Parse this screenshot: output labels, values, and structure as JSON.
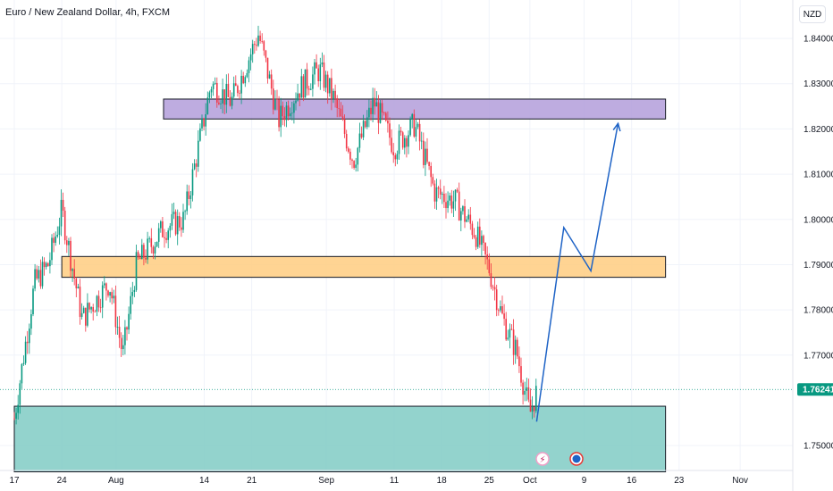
{
  "header": {
    "symbol_title": "Euro / New Zealand Dollar, 4h, FXCM",
    "currency_button": "NZD"
  },
  "colors": {
    "up": "#089981",
    "down": "#f23645",
    "zone_resistance": "#b39ddb",
    "zone_middle": "#ffcc80",
    "zone_support": "#80cbc4",
    "projection": "#1e63c6",
    "last_price_bg": "#089981"
  },
  "chart_data": {
    "type": "candlestick",
    "title": "Euro / New Zealand Dollar, 4h, FXCM",
    "ylim": [
      1.7445,
      1.8485
    ],
    "y_ticks": [
      "1.84000",
      "1.83000",
      "1.82000",
      "1.81000",
      "1.80000",
      "1.79000",
      "1.78000",
      "1.77000",
      "1.75000"
    ],
    "y_tick_values": [
      1.84,
      1.83,
      1.82,
      1.81,
      1.8,
      1.79,
      1.78,
      1.77,
      1.75
    ],
    "x_ticks": [
      "17",
      "24",
      "Aug",
      "14",
      "21",
      "Sep",
      "11",
      "18",
      "25",
      "Oct",
      "9",
      "16",
      "23",
      "Nov"
    ],
    "last_price": "1.76241",
    "last_price_value": 1.76241,
    "zones": [
      {
        "name": "resistance",
        "from": 1.8222,
        "to": 1.8266,
        "start": "Aug 8",
        "end": "Oct 21"
      },
      {
        "name": "middle",
        "from": 1.7872,
        "to": 1.7918,
        "start": "Jul 24",
        "end": "Oct 21"
      },
      {
        "name": "support",
        "from": 1.7442,
        "to": 1.7587,
        "start": "Jul 17",
        "end": "Oct 21"
      }
    ],
    "projection_path": [
      {
        "date": "Oct 2",
        "price": 1.7553
      },
      {
        "date": "Oct 6",
        "price": 1.7982
      },
      {
        "date": "Oct 10",
        "price": 1.7886
      },
      {
        "date": "Oct 14",
        "price": 1.8212
      }
    ],
    "price_path_approx": [
      {
        "date": "Jul 17",
        "price": 1.756
      },
      {
        "date": "Jul 20",
        "price": 1.786
      },
      {
        "date": "Jul 22",
        "price": 1.79
      },
      {
        "date": "Jul 24",
        "price": 1.802
      },
      {
        "date": "Jul 27",
        "price": 1.778
      },
      {
        "date": "Jul 31",
        "price": 1.786
      },
      {
        "date": "Aug 2",
        "price": 1.77
      },
      {
        "date": "Aug 4",
        "price": 1.79
      },
      {
        "date": "Aug 8",
        "price": 1.798
      },
      {
        "date": "Aug 11",
        "price": 1.8
      },
      {
        "date": "Aug 15",
        "price": 1.83
      },
      {
        "date": "Aug 18",
        "price": 1.826
      },
      {
        "date": "Aug 22",
        "price": 1.841
      },
      {
        "date": "Aug 25",
        "price": 1.822
      },
      {
        "date": "Aug 28",
        "price": 1.829
      },
      {
        "date": "Aug 31",
        "price": 1.833
      },
      {
        "date": "Sep 2",
        "price": 1.827
      },
      {
        "date": "Sep 5",
        "price": 1.813
      },
      {
        "date": "Sep 8",
        "price": 1.826
      },
      {
        "date": "Sep 11",
        "price": 1.816
      },
      {
        "date": "Sep 14",
        "price": 1.821
      },
      {
        "date": "Sep 17",
        "price": 1.806
      },
      {
        "date": "Sep 20",
        "price": 1.804
      },
      {
        "date": "Sep 23",
        "price": 1.797
      },
      {
        "date": "Sep 25",
        "price": 1.789
      },
      {
        "date": "Sep 27",
        "price": 1.778
      },
      {
        "date": "Sep 29",
        "price": 1.771
      },
      {
        "date": "Oct 1",
        "price": 1.757
      },
      {
        "date": "Oct 2",
        "price": 1.762
      }
    ]
  }
}
